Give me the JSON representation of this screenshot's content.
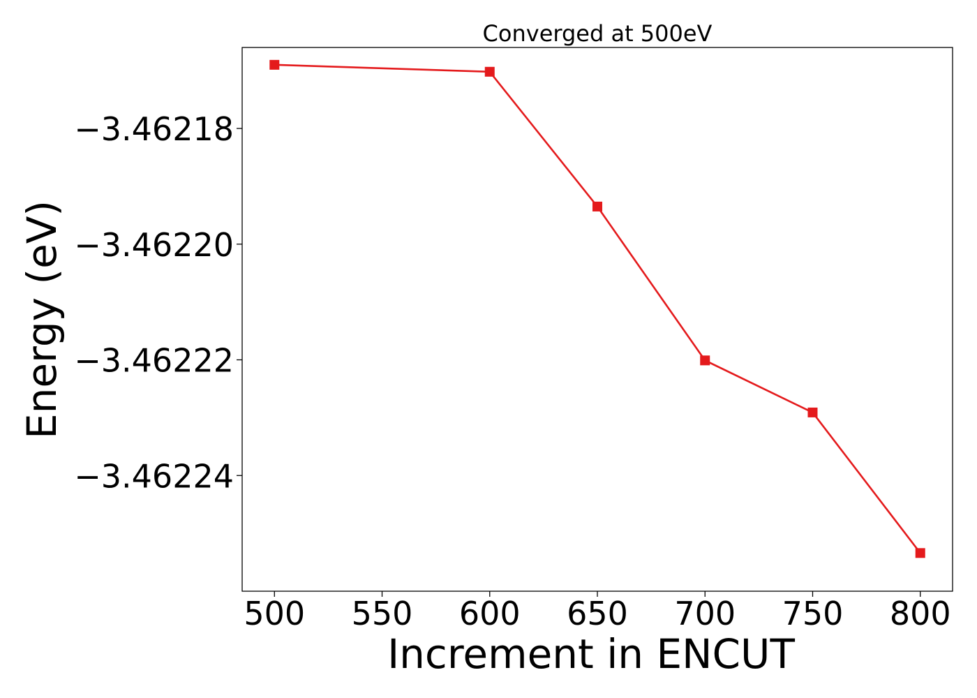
{
  "chart_data": {
    "type": "line",
    "title": "Converged at 500eV",
    "xlabel": "Increment in ENCUT",
    "ylabel": "Energy (eV)",
    "x": [
      500,
      600,
      650,
      700,
      750,
      800
    ],
    "series": [
      {
        "values": [
          -3.462169,
          -3.4621702,
          -3.4621935,
          -3.4622201,
          -3.4622291,
          -3.4622534
        ],
        "color": "#e41a1c",
        "marker": "square"
      }
    ],
    "xticks": [
      500,
      550,
      600,
      650,
      700,
      750,
      800
    ],
    "xtick_labels": [
      "500",
      "550",
      "600",
      "650",
      "700",
      "750",
      "800"
    ],
    "yticks": [
      -3.46218,
      -3.4622,
      -3.46222,
      -3.46224
    ],
    "ytick_labels": [
      "−3.46218",
      "−3.46220",
      "−3.46222",
      "−3.46224"
    ],
    "xlim": [
      485,
      815
    ],
    "ylim": [
      -3.46226,
      -3.462166
    ],
    "grid": false,
    "legend": "none"
  }
}
